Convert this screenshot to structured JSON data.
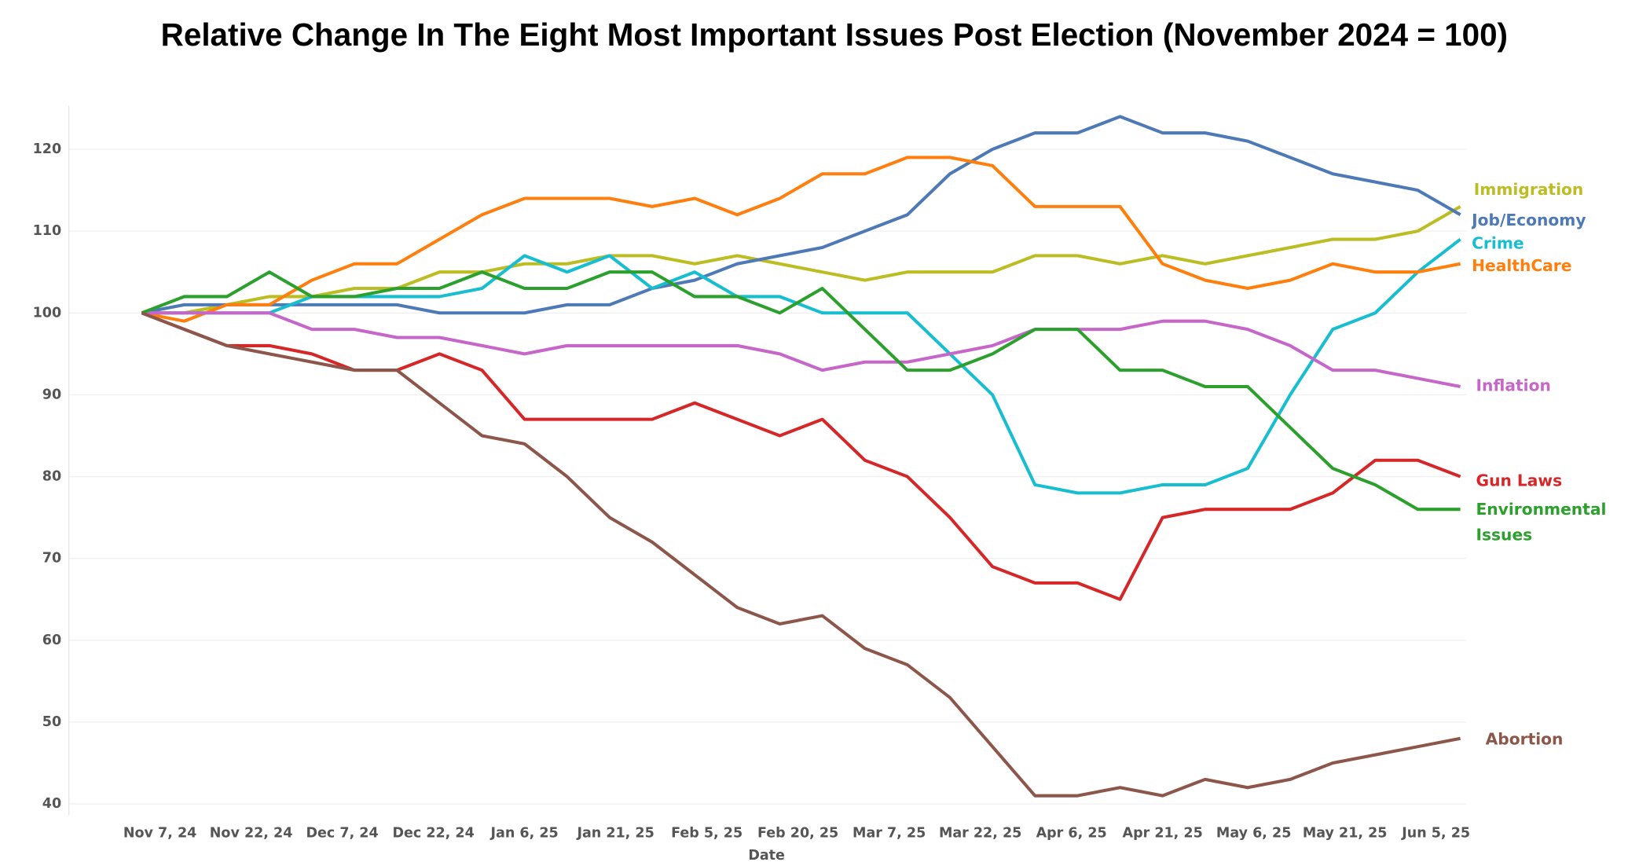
{
  "chart_data": {
    "type": "line",
    "title": "Relative Change In The Eight Most Important Issues Post Election (November 2024 = 100)",
    "x_label": "Date",
    "x": [
      0,
      7,
      14,
      21,
      28,
      35,
      42,
      49,
      56,
      63,
      70,
      77,
      84,
      91,
      98,
      105,
      112,
      119,
      126,
      133,
      140,
      147,
      154,
      161,
      168,
      175,
      182,
      189,
      196,
      203,
      210,
      217
    ],
    "xlim": [
      -12,
      218
    ],
    "xticks": [
      {
        "value": 3,
        "label": "Nov 7, 24"
      },
      {
        "value": 18,
        "label": "Nov 22, 24"
      },
      {
        "value": 33,
        "label": "Dec 7, 24"
      },
      {
        "value": 48,
        "label": "Dec 22, 24"
      },
      {
        "value": 63,
        "label": "Jan 6, 25"
      },
      {
        "value": 78,
        "label": "Jan 21, 25"
      },
      {
        "value": 93,
        "label": "Feb 5, 25"
      },
      {
        "value": 108,
        "label": "Feb 20, 25"
      },
      {
        "value": 123,
        "label": "Mar 7, 25"
      },
      {
        "value": 138,
        "label": "Mar 22, 25"
      },
      {
        "value": 153,
        "label": "Apr 6, 25"
      },
      {
        "value": 168,
        "label": "Apr 21, 25"
      },
      {
        "value": 183,
        "label": "May 6, 25"
      },
      {
        "value": 198,
        "label": "May 21, 25"
      },
      {
        "value": 213,
        "label": "Jun 5, 25"
      }
    ],
    "ylim": [
      38.6,
      125.3
    ],
    "yticks": [
      40,
      50,
      60,
      70,
      80,
      90,
      100,
      110,
      120
    ],
    "grid": true,
    "series": [
      {
        "name": "Immigration",
        "color": "#bcbd22",
        "values": [
          100,
          100,
          101,
          102,
          102,
          103,
          103,
          105,
          105,
          106,
          106,
          107,
          107,
          106,
          107,
          106,
          105,
          104,
          105,
          105,
          105,
          107,
          107,
          106,
          107,
          106,
          107,
          108,
          109,
          109,
          110,
          113
        ]
      },
      {
        "name": "Job/Economy",
        "color": "#4e79b7",
        "values": [
          100,
          101,
          101,
          101,
          101,
          101,
          101,
          100,
          100,
          100,
          101,
          101,
          103,
          104,
          106,
          107,
          108,
          110,
          112,
          117,
          120,
          122,
          122,
          124,
          122,
          122,
          121,
          119,
          117,
          116,
          115,
          112
        ]
      },
      {
        "name": "Crime",
        "color": "#17becf",
        "values": [
          100,
          100,
          100,
          100,
          102,
          102,
          102,
          102,
          103,
          107,
          105,
          107,
          103,
          105,
          102,
          102,
          100,
          100,
          100,
          95,
          90,
          79,
          78,
          78,
          79,
          79,
          81,
          90,
          98,
          100,
          105,
          109
        ]
      },
      {
        "name": "HealthCare",
        "color": "#ff7f0e",
        "values": [
          100,
          99,
          101,
          101,
          104,
          106,
          106,
          109,
          112,
          114,
          114,
          114,
          113,
          114,
          112,
          114,
          117,
          117,
          119,
          119,
          118,
          113,
          113,
          113,
          106,
          104,
          103,
          104,
          106,
          105,
          105,
          106
        ]
      },
      {
        "name": "Inflation",
        "color": "#c766c9",
        "values": [
          100,
          100,
          100,
          100,
          98,
          98,
          97,
          97,
          96,
          95,
          96,
          96,
          96,
          96,
          96,
          95,
          93,
          94,
          94,
          95,
          96,
          98,
          98,
          98,
          99,
          99,
          98,
          96,
          93,
          93,
          92,
          91
        ]
      },
      {
        "name": "Gun Laws",
        "color": "#d62728",
        "values": [
          100,
          98,
          96,
          96,
          95,
          93,
          93,
          95,
          93,
          87,
          87,
          87,
          87,
          89,
          87,
          85,
          87,
          82,
          80,
          75,
          69,
          67,
          67,
          65,
          75,
          76,
          76,
          76,
          78,
          82,
          82,
          80
        ]
      },
      {
        "name": "Environmental Issues",
        "color": "#2ca02c",
        "values": [
          100,
          102,
          102,
          105,
          102,
          102,
          103,
          103,
          105,
          103,
          103,
          105,
          105,
          102,
          102,
          100,
          103,
          98,
          93,
          93,
          95,
          98,
          98,
          93,
          93,
          91,
          91,
          86,
          81,
          79,
          76,
          76
        ]
      },
      {
        "name": "Abortion",
        "color": "#8c564b",
        "values": [
          100,
          98,
          96,
          95,
          94,
          93,
          93,
          89,
          85,
          84,
          80,
          75,
          72,
          68,
          64,
          62,
          63,
          59,
          57,
          53,
          47,
          41,
          41,
          42,
          41,
          43,
          42,
          43,
          45,
          46,
          47,
          48
        ]
      }
    ]
  }
}
